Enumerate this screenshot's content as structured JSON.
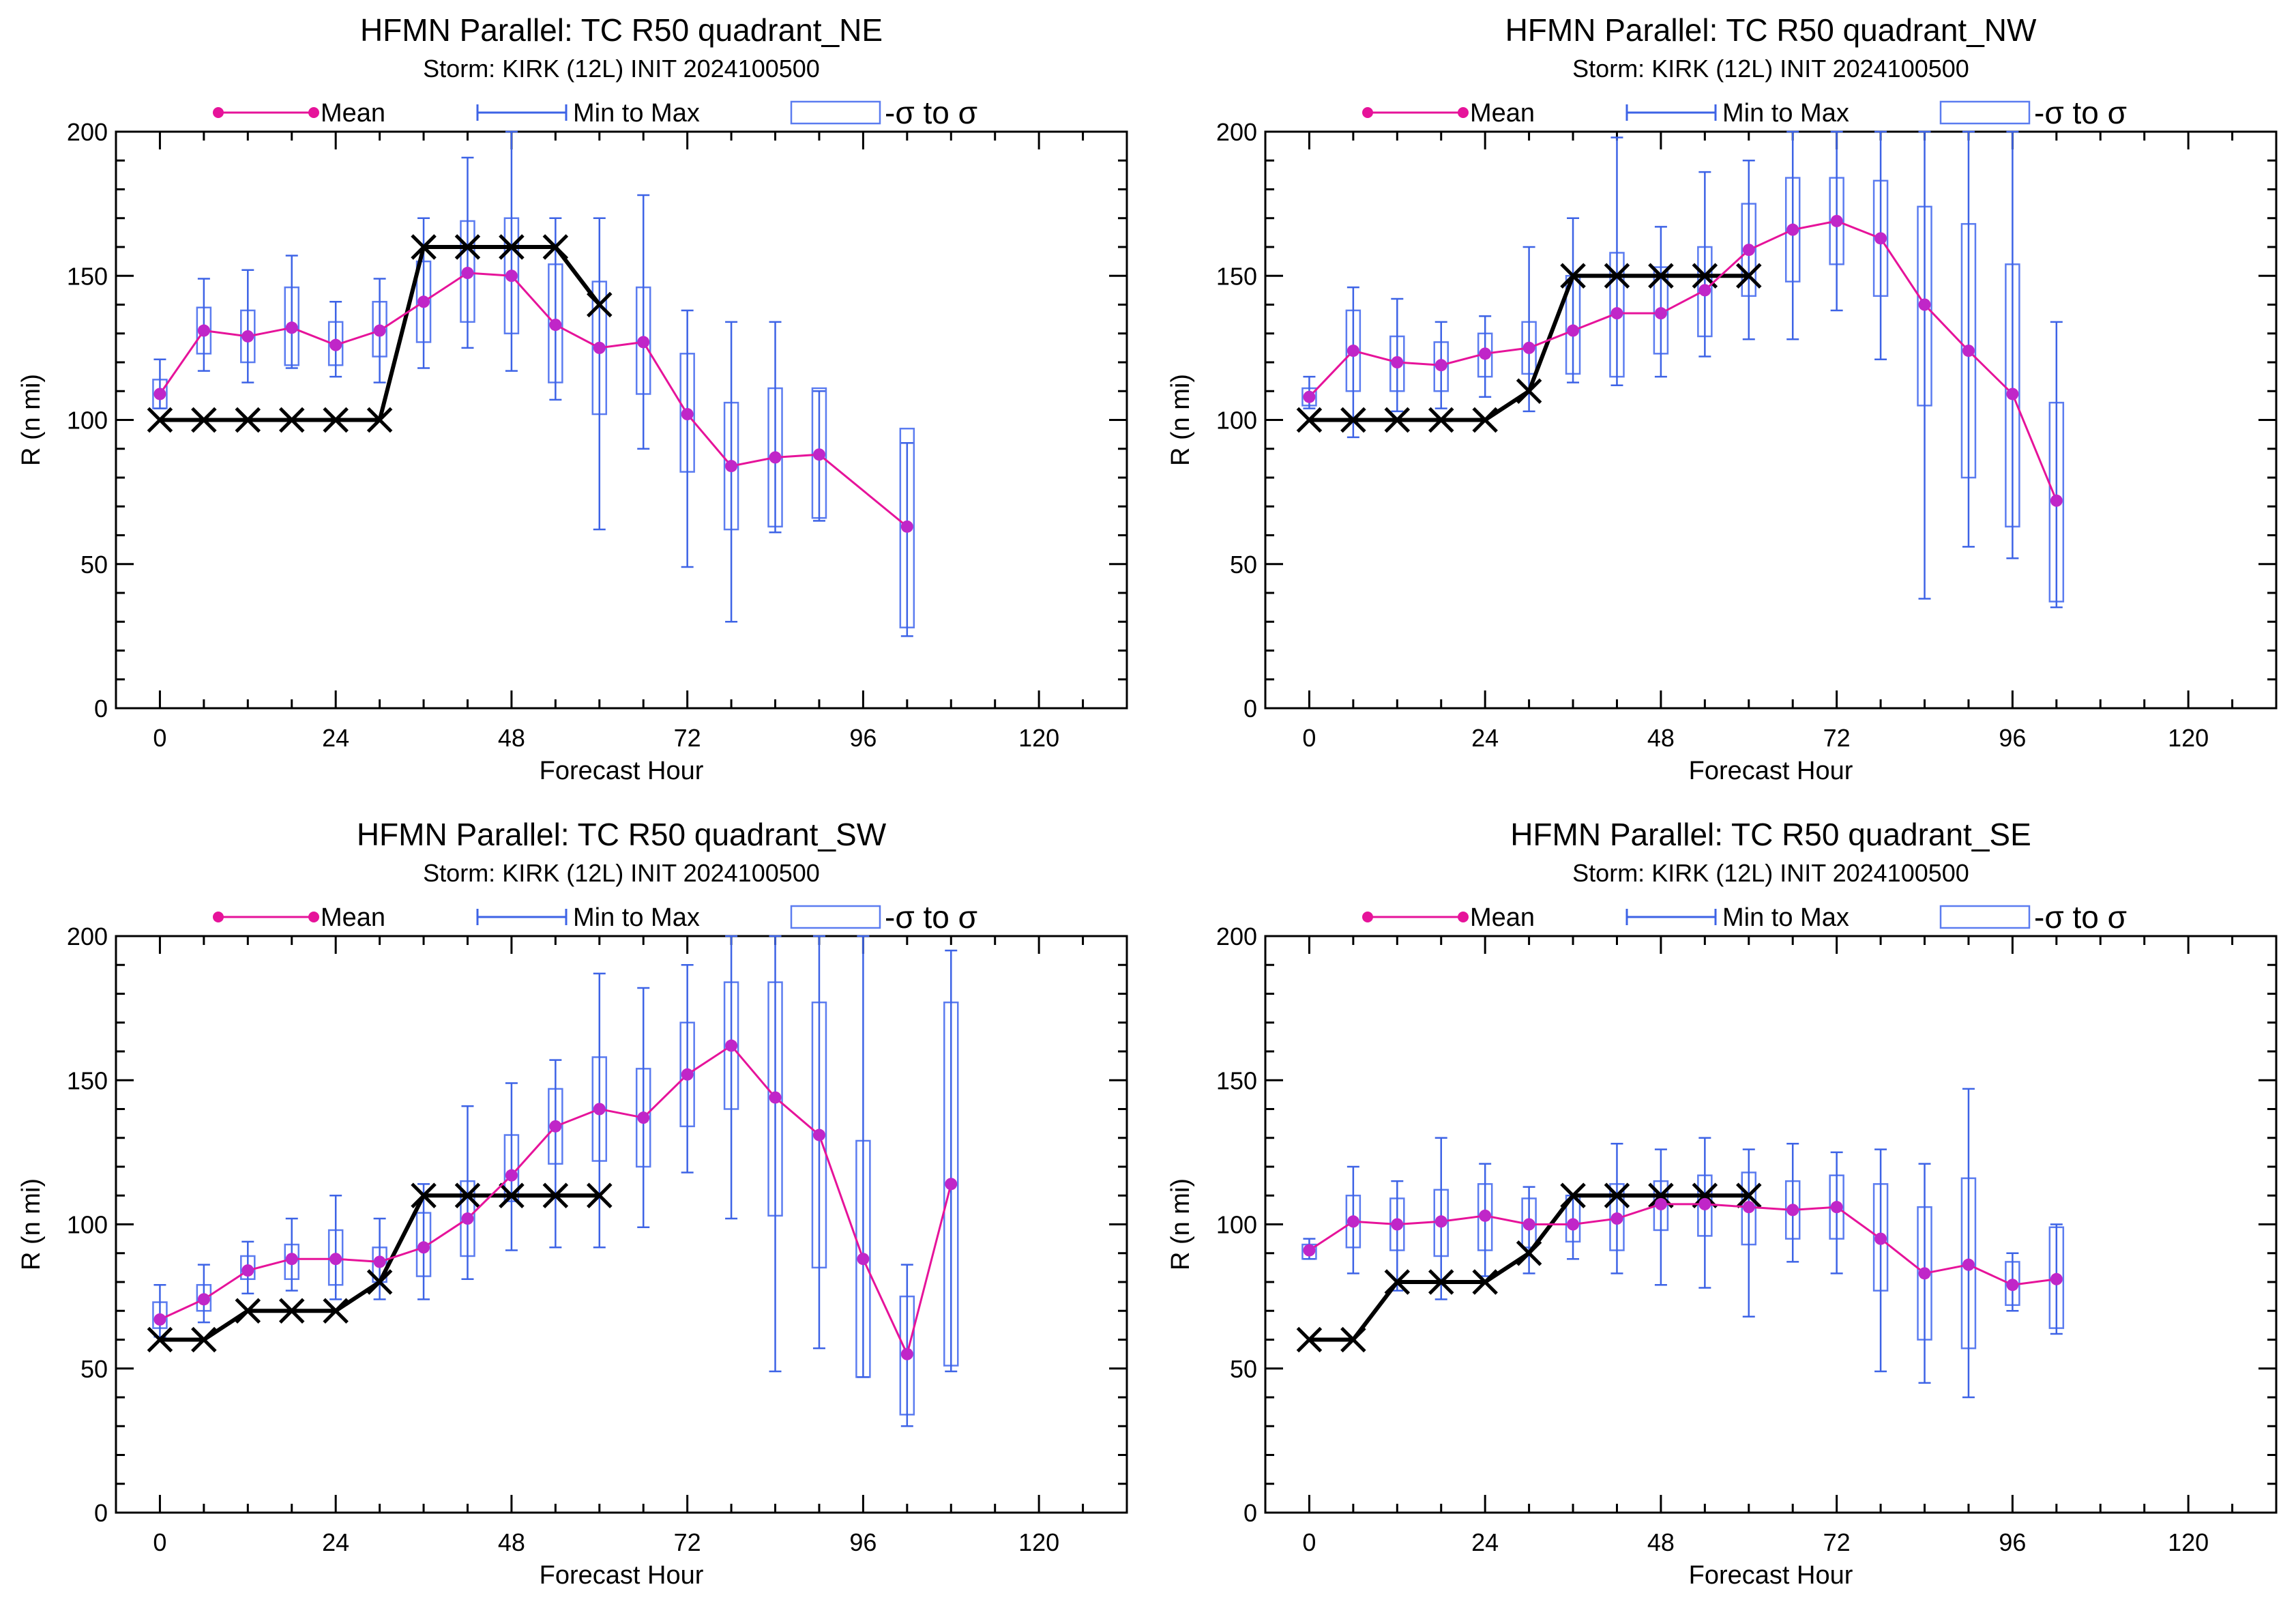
{
  "colors": {
    "mean": "#e6139a",
    "mean_marker": "#c026c8",
    "range": "#3d63e6",
    "box": "#5b7cf0",
    "best_track": "#000000",
    "axes": "#000000"
  },
  "legend": {
    "mean": "Mean",
    "range": "Min to Max",
    "sigma": "-σ to σ"
  },
  "chart_data": [
    {
      "type": "box",
      "title": "HFMN Parallel: TC  R50 quadrant_NE",
      "subtitle": "Storm: KIRK (12L) INIT 2024100500",
      "xlabel": "Forecast Hour",
      "ylabel": "R (n mi)",
      "xlim": [
        -6,
        132
      ],
      "ylim": [
        0,
        200
      ],
      "xticks": [
        0,
        24,
        48,
        72,
        96,
        120
      ],
      "yticks": [
        0,
        50,
        100,
        150,
        200
      ],
      "mean": {
        "x": [
          0,
          6,
          12,
          18,
          24,
          30,
          36,
          42,
          48,
          54,
          60,
          66,
          72,
          78,
          84,
          90,
          102
        ],
        "y": [
          109,
          131,
          129,
          132,
          126,
          131,
          141,
          151,
          150,
          133,
          125,
          127,
          102,
          84,
          87,
          88,
          63
        ]
      },
      "range": {
        "x": [
          0,
          6,
          12,
          18,
          24,
          30,
          36,
          42,
          48,
          54,
          60,
          66,
          72,
          78,
          84,
          90,
          102
        ],
        "min": [
          104,
          117,
          113,
          118,
          115,
          113,
          118,
          125,
          117,
          107,
          62,
          90,
          49,
          30,
          61,
          65,
          25
        ],
        "max": [
          121,
          149,
          152,
          157,
          141,
          149,
          170,
          191,
          200,
          170,
          170,
          178,
          138,
          134,
          134,
          110,
          92
        ]
      },
      "sigma": {
        "x": [
          0,
          6,
          12,
          18,
          24,
          30,
          36,
          42,
          48,
          54,
          60,
          66,
          72,
          78,
          84,
          90,
          102
        ],
        "lo": [
          104,
          123,
          120,
          119,
          119,
          122,
          127,
          134,
          130,
          113,
          102,
          109,
          82,
          62,
          63,
          66,
          28
        ],
        "hi": [
          114,
          139,
          138,
          146,
          134,
          141,
          155,
          169,
          170,
          154,
          148,
          146,
          123,
          106,
          111,
          111,
          97
        ]
      },
      "best_track": {
        "x": [
          0,
          6,
          12,
          18,
          24,
          30,
          36,
          42,
          48,
          54,
          60
        ],
        "y": [
          100,
          100,
          100,
          100,
          100,
          100,
          160,
          160,
          160,
          160,
          140
        ]
      }
    },
    {
      "type": "box",
      "title": "HFMN Parallel: TC  R50 quadrant_NW",
      "subtitle": "Storm: KIRK (12L) INIT 2024100500",
      "xlabel": "Forecast Hour",
      "ylabel": "R (n mi)",
      "xlim": [
        -6,
        132
      ],
      "ylim": [
        0,
        200
      ],
      "xticks": [
        0,
        24,
        48,
        72,
        96,
        120
      ],
      "yticks": [
        0,
        50,
        100,
        150,
        200
      ],
      "mean": {
        "x": [
          0,
          6,
          12,
          18,
          24,
          30,
          36,
          42,
          48,
          54,
          60,
          66,
          72,
          78,
          84,
          90,
          96,
          102
        ],
        "y": [
          108,
          124,
          120,
          119,
          123,
          125,
          131,
          137,
          137,
          145,
          159,
          166,
          169,
          163,
          140,
          124,
          109,
          72
        ]
      },
      "range": {
        "x": [
          0,
          6,
          12,
          18,
          24,
          30,
          36,
          42,
          48,
          54,
          60,
          66,
          72,
          78,
          84,
          90,
          96,
          102
        ],
        "min": [
          104,
          94,
          103,
          104,
          108,
          103,
          113,
          112,
          115,
          122,
          128,
          128,
          138,
          121,
          38,
          56,
          52,
          35
        ],
        "max": [
          115,
          146,
          142,
          134,
          136,
          160,
          170,
          198,
          167,
          186,
          190,
          200,
          200,
          200,
          200,
          200,
          200,
          134
        ]
      },
      "sigma": {
        "x": [
          0,
          6,
          12,
          18,
          24,
          30,
          36,
          42,
          48,
          54,
          60,
          66,
          72,
          78,
          84,
          90,
          96,
          102
        ],
        "lo": [
          105,
          110,
          110,
          110,
          115,
          116,
          116,
          115,
          123,
          129,
          143,
          148,
          154,
          143,
          105,
          80,
          63,
          37
        ],
        "hi": [
          111,
          138,
          129,
          127,
          130,
          134,
          150,
          158,
          153,
          160,
          175,
          184,
          184,
          183,
          174,
          168,
          154,
          106
        ]
      },
      "best_track": {
        "x": [
          0,
          6,
          12,
          18,
          24,
          30,
          36,
          42,
          48,
          54,
          60
        ],
        "y": [
          100,
          100,
          100,
          100,
          100,
          110,
          150,
          150,
          150,
          150,
          150
        ]
      }
    },
    {
      "type": "box",
      "title": "HFMN Parallel: TC  R50 quadrant_SW",
      "subtitle": "Storm: KIRK (12L) INIT 2024100500",
      "xlabel": "Forecast Hour",
      "ylabel": "R (n mi)",
      "xlim": [
        -6,
        132
      ],
      "ylim": [
        0,
        200
      ],
      "xticks": [
        0,
        24,
        48,
        72,
        96,
        120
      ],
      "yticks": [
        0,
        50,
        100,
        150,
        200
      ],
      "mean": {
        "x": [
          0,
          6,
          12,
          18,
          24,
          30,
          36,
          42,
          48,
          54,
          60,
          66,
          72,
          78,
          84,
          90,
          96,
          102,
          108
        ],
        "y": [
          67,
          74,
          84,
          88,
          88,
          87,
          92,
          102,
          117,
          134,
          140,
          137,
          152,
          162,
          144,
          131,
          88,
          55,
          114
        ]
      },
      "range": {
        "x": [
          0,
          6,
          12,
          18,
          24,
          30,
          36,
          42,
          48,
          54,
          60,
          66,
          72,
          78,
          84,
          90,
          96,
          102,
          108
        ],
        "min": [
          61,
          66,
          76,
          77,
          74,
          74,
          74,
          81,
          91,
          92,
          92,
          99,
          118,
          102,
          49,
          57,
          47,
          30,
          49
        ],
        "max": [
          79,
          86,
          94,
          102,
          110,
          102,
          114,
          141,
          149,
          157,
          187,
          182,
          190,
          200,
          200,
          200,
          200,
          86,
          195
        ]
      },
      "sigma": {
        "x": [
          0,
          6,
          12,
          18,
          24,
          30,
          36,
          42,
          48,
          54,
          60,
          66,
          72,
          78,
          84,
          90,
          96,
          102,
          108
        ],
        "lo": [
          64,
          70,
          81,
          81,
          79,
          80,
          82,
          89,
          108,
          121,
          122,
          120,
          134,
          140,
          103,
          85,
          47,
          34,
          51
        ],
        "hi": [
          73,
          79,
          89,
          93,
          98,
          92,
          104,
          115,
          131,
          147,
          158,
          154,
          170,
          184,
          184,
          177,
          129,
          75,
          177
        ]
      },
      "best_track": {
        "x": [
          0,
          6,
          12,
          18,
          24,
          30,
          36,
          42,
          48,
          54,
          60
        ],
        "y": [
          60,
          60,
          70,
          70,
          70,
          80,
          110,
          110,
          110,
          110,
          110
        ]
      }
    },
    {
      "type": "box",
      "title": "HFMN Parallel: TC  R50 quadrant_SE",
      "subtitle": "Storm: KIRK (12L) INIT 2024100500",
      "xlabel": "Forecast Hour",
      "ylabel": "R (n mi)",
      "xlim": [
        -6,
        132
      ],
      "ylim": [
        0,
        200
      ],
      "xticks": [
        0,
        24,
        48,
        72,
        96,
        120
      ],
      "yticks": [
        0,
        50,
        100,
        150,
        200
      ],
      "mean": {
        "x": [
          0,
          6,
          12,
          18,
          24,
          30,
          36,
          42,
          48,
          54,
          60,
          66,
          72,
          78,
          84,
          90,
          96,
          102
        ],
        "y": [
          91,
          101,
          100,
          101,
          103,
          100,
          100,
          102,
          107,
          107,
          106,
          105,
          106,
          95,
          83,
          86,
          79,
          81
        ]
      },
      "range": {
        "x": [
          0,
          6,
          12,
          18,
          24,
          30,
          36,
          42,
          48,
          54,
          60,
          66,
          72,
          78,
          84,
          90,
          96,
          102
        ],
        "min": [
          88,
          83,
          77,
          74,
          82,
          83,
          88,
          83,
          79,
          78,
          68,
          87,
          83,
          49,
          45,
          40,
          70,
          62
        ],
        "max": [
          95,
          120,
          115,
          130,
          121,
          113,
          110,
          128,
          126,
          130,
          126,
          128,
          125,
          126,
          121,
          147,
          90,
          100
        ]
      },
      "sigma": {
        "x": [
          0,
          6,
          12,
          18,
          24,
          30,
          36,
          42,
          48,
          54,
          60,
          66,
          72,
          78,
          84,
          90,
          96,
          102
        ],
        "lo": [
          88,
          92,
          91,
          89,
          91,
          92,
          94,
          91,
          98,
          96,
          93,
          95,
          95,
          77,
          60,
          57,
          72,
          64
        ],
        "hi": [
          93,
          110,
          109,
          112,
          114,
          109,
          110,
          114,
          115,
          117,
          118,
          115,
          117,
          114,
          106,
          116,
          87,
          99
        ]
      },
      "best_track": {
        "x": [
          0,
          6,
          12,
          18,
          24,
          30,
          36,
          42,
          48,
          54,
          60
        ],
        "y": [
          60,
          60,
          80,
          80,
          80,
          90,
          110,
          110,
          110,
          110,
          110
        ]
      }
    }
  ]
}
